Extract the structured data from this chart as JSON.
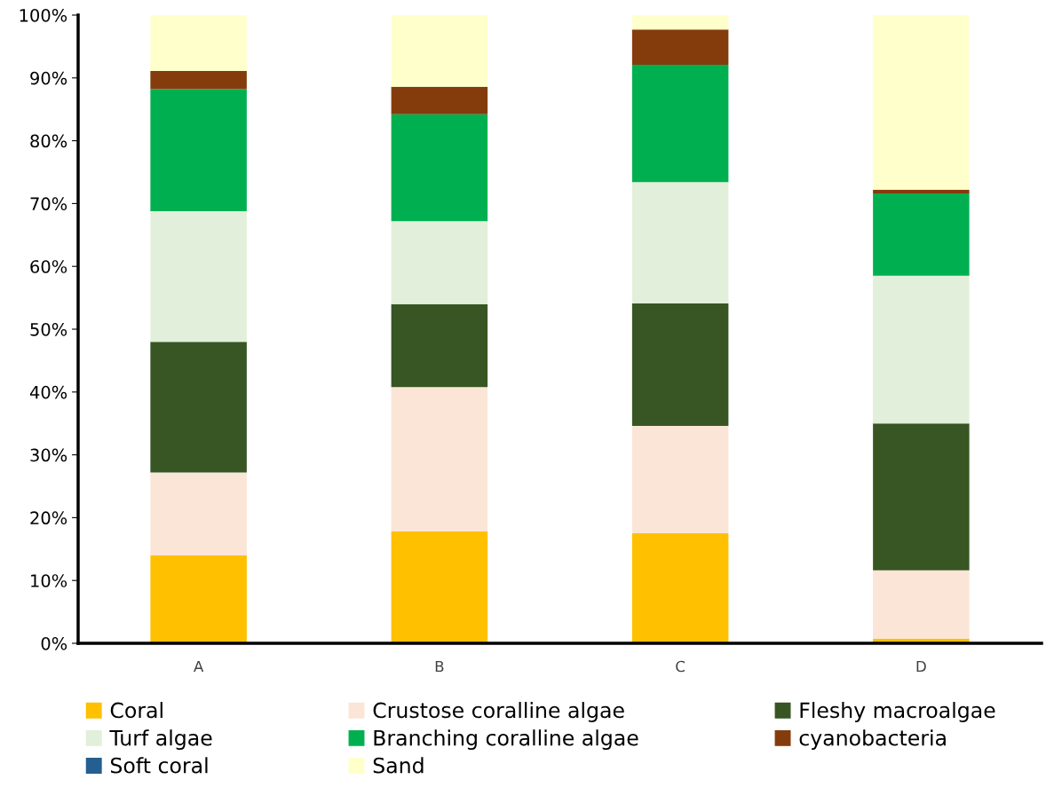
{
  "chart_data": {
    "type": "bar",
    "stacked": true,
    "categories": [
      "A",
      "B",
      "C",
      "D"
    ],
    "ylim": [
      0,
      100
    ],
    "yticks": [
      {
        "value": 0,
        "label": "0%"
      },
      {
        "value": 10,
        "label": "10%"
      },
      {
        "value": 20,
        "label": "20%"
      },
      {
        "value": 30,
        "label": "30%"
      },
      {
        "value": 40,
        "label": "40%"
      },
      {
        "value": 50,
        "label": "50%"
      },
      {
        "value": 60,
        "label": "60%"
      },
      {
        "value": 70,
        "label": "70%"
      },
      {
        "value": 80,
        "label": "80%"
      },
      {
        "value": 90,
        "label": "90%"
      },
      {
        "value": 100,
        "label": "100%"
      }
    ],
    "grid": false,
    "legend": "bottom",
    "series": [
      {
        "name": "Coral",
        "color": "#ffc000",
        "values": [
          14.0,
          17.8,
          17.5,
          0.7
        ]
      },
      {
        "name": "Crustose coralline algae",
        "color": "#fbe5d6",
        "values": [
          13.2,
          23.0,
          17.1,
          10.9
        ]
      },
      {
        "name": "Fleshy macroalgae",
        "color": "#375623",
        "values": [
          20.8,
          13.2,
          19.5,
          23.4
        ]
      },
      {
        "name": "Turf algae",
        "color": "#e2efda",
        "values": [
          20.8,
          13.2,
          19.3,
          23.5
        ]
      },
      {
        "name": "Branching coralline algae",
        "color": "#00b050",
        "values": [
          19.4,
          17.0,
          18.7,
          13.1
        ]
      },
      {
        "name": "cyanobacteria",
        "color": "#843c0c",
        "values": [
          2.9,
          4.4,
          5.6,
          0.6
        ]
      },
      {
        "name": "Soft coral",
        "color": "#255e91",
        "values": [
          0,
          0,
          0,
          0
        ]
      },
      {
        "name": "Sand",
        "color": "#ffffcc",
        "values": [
          8.9,
          11.4,
          2.3,
          27.8
        ]
      }
    ]
  }
}
